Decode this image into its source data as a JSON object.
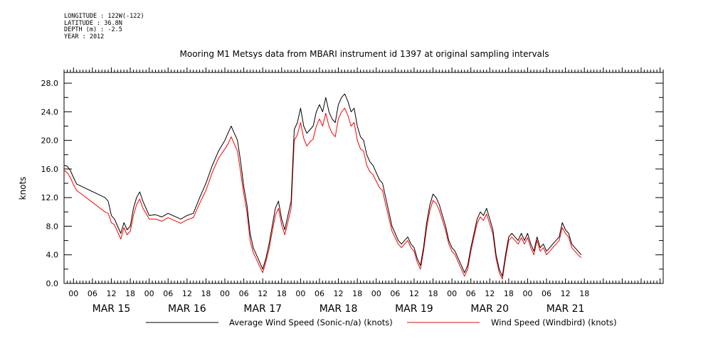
{
  "header": {
    "longitude": "LONGITUDE : 122W(-122)",
    "latitude": "LATITUDE : 36.8N",
    "depth": "DEPTH (m) : -2.5",
    "year": "YEAR : 2012"
  },
  "chart_data": {
    "type": "line",
    "title": "Mooring M1 Metsys data from MBARI instrument id 1397 at original sampling intervals",
    "ylabel": "knots",
    "xlabel": "",
    "ylim": [
      0,
      29.5
    ],
    "xlim": [
      -3,
      187
    ],
    "x_unit": "hours since 2012-03-15 00:00",
    "yticks": [
      "0.0",
      "4.0",
      "8.0",
      "12.0",
      "16.0",
      "20.0",
      "24.0",
      "28.0"
    ],
    "hour_tick_labels": [
      "00",
      "06",
      "12",
      "18",
      "00",
      "06",
      "12",
      "18",
      "00",
      "06",
      "12",
      "18",
      "00",
      "06",
      "12",
      "18",
      "00",
      "06",
      "12",
      "18",
      "00",
      "06",
      "12",
      "18",
      "00",
      "06",
      "12",
      "18"
    ],
    "day_labels": [
      "MAR 15",
      "MAR 16",
      "MAR 17",
      "MAR 18",
      "MAR 19",
      "MAR 20",
      "MAR 21"
    ],
    "grid": false,
    "legend_position": "bottom",
    "series": [
      {
        "name": "Average Wind Speed (Sonic-n/a) (knots)",
        "color": "#000000",
        "points": [
          [
            -3,
            16.5
          ],
          [
            -2,
            16.4
          ],
          [
            -1,
            15.8
          ],
          [
            0,
            14.8
          ],
          [
            1,
            13.9
          ],
          [
            10,
            12.0
          ],
          [
            11,
            11.5
          ],
          [
            12,
            9.5
          ],
          [
            13,
            9.0
          ],
          [
            14,
            8.0
          ],
          [
            15,
            7.0
          ],
          [
            16,
            8.5
          ],
          [
            17,
            7.5
          ],
          [
            18,
            8.0
          ],
          [
            19,
            10.5
          ],
          [
            20,
            12.0
          ],
          [
            21,
            12.8
          ],
          [
            22,
            11.5
          ],
          [
            23,
            10.5
          ],
          [
            24,
            9.5
          ],
          [
            26,
            9.6
          ],
          [
            28,
            9.3
          ],
          [
            30,
            9.8
          ],
          [
            32,
            9.4
          ],
          [
            34,
            9.0
          ],
          [
            36,
            9.5
          ],
          [
            38,
            9.8
          ],
          [
            40,
            12.0
          ],
          [
            42,
            14.0
          ],
          [
            44,
            16.5
          ],
          [
            46,
            18.5
          ],
          [
            48,
            20.0
          ],
          [
            49,
            21.0
          ],
          [
            50,
            22.0
          ],
          [
            51,
            21.0
          ],
          [
            52,
            20.0
          ],
          [
            53,
            17.0
          ],
          [
            54,
            13.5
          ],
          [
            55,
            11.0
          ],
          [
            56,
            7.0
          ],
          [
            57,
            5.0
          ],
          [
            58,
            4.0
          ],
          [
            59,
            3.0
          ],
          [
            60,
            2.0
          ],
          [
            61,
            3.5
          ],
          [
            62,
            5.5
          ],
          [
            63,
            8.0
          ],
          [
            64,
            10.5
          ],
          [
            65,
            11.5
          ],
          [
            66,
            9.0
          ],
          [
            67,
            7.5
          ],
          [
            68,
            9.5
          ],
          [
            69,
            11.5
          ],
          [
            70,
            21.5
          ],
          [
            71,
            22.5
          ],
          [
            72,
            24.5
          ],
          [
            73,
            22.0
          ],
          [
            74,
            21.0
          ],
          [
            75,
            21.5
          ],
          [
            76,
            22.0
          ],
          [
            77,
            24.0
          ],
          [
            78,
            25.0
          ],
          [
            79,
            24.0
          ],
          [
            80,
            26.0
          ],
          [
            81,
            24.0
          ],
          [
            82,
            23.0
          ],
          [
            83,
            22.5
          ],
          [
            84,
            25.0
          ],
          [
            85,
            26.0
          ],
          [
            86,
            26.5
          ],
          [
            87,
            25.5
          ],
          [
            88,
            24.0
          ],
          [
            89,
            24.5
          ],
          [
            90,
            22.0
          ],
          [
            91,
            20.5
          ],
          [
            92,
            20.0
          ],
          [
            93,
            18.0
          ],
          [
            94,
            17.0
          ],
          [
            95,
            16.5
          ],
          [
            96,
            15.5
          ],
          [
            97,
            14.5
          ],
          [
            98,
            14.0
          ],
          [
            99,
            12.0
          ],
          [
            100,
            10.0
          ],
          [
            101,
            8.0
          ],
          [
            102,
            7.0
          ],
          [
            103,
            6.0
          ],
          [
            104,
            5.5
          ],
          [
            105,
            6.0
          ],
          [
            106,
            6.5
          ],
          [
            107,
            5.5
          ],
          [
            108,
            5.0
          ],
          [
            109,
            3.5
          ],
          [
            110,
            2.5
          ],
          [
            111,
            5.0
          ],
          [
            112,
            8.5
          ],
          [
            113,
            11.0
          ],
          [
            114,
            12.5
          ],
          [
            115,
            12.0
          ],
          [
            116,
            11.0
          ],
          [
            117,
            9.5
          ],
          [
            118,
            8.0
          ],
          [
            119,
            6.0
          ],
          [
            120,
            5.0
          ],
          [
            121,
            4.5
          ],
          [
            122,
            3.5
          ],
          [
            123,
            2.5
          ],
          [
            124,
            1.5
          ],
          [
            125,
            2.5
          ],
          [
            126,
            5.0
          ],
          [
            127,
            7.0
          ],
          [
            128,
            9.0
          ],
          [
            129,
            10.0
          ],
          [
            130,
            9.5
          ],
          [
            131,
            10.5
          ],
          [
            132,
            9.0
          ],
          [
            133,
            7.5
          ],
          [
            134,
            4.0
          ],
          [
            135,
            2.0
          ],
          [
            136,
            1.0
          ],
          [
            137,
            4.0
          ],
          [
            138,
            6.5
          ],
          [
            139,
            7.0
          ],
          [
            140,
            6.5
          ],
          [
            141,
            6.0
          ],
          [
            142,
            7.0
          ],
          [
            143,
            6.0
          ],
          [
            144,
            7.0
          ],
          [
            145,
            5.5
          ],
          [
            146,
            4.5
          ],
          [
            147,
            6.5
          ],
          [
            148,
            5.0
          ],
          [
            149,
            5.5
          ],
          [
            150,
            4.5
          ],
          [
            151,
            5.0
          ],
          [
            152,
            5.5
          ],
          [
            153,
            6.0
          ],
          [
            154,
            6.5
          ],
          [
            155,
            8.5
          ],
          [
            156,
            7.5
          ],
          [
            157,
            7.0
          ],
          [
            158,
            5.5
          ],
          [
            159,
            5.0
          ],
          [
            160,
            4.5
          ],
          [
            161,
            4.0
          ]
        ]
      },
      {
        "name": "Wind Speed (Windbird) (knots)",
        "color": "#ff0000",
        "points": [
          [
            -3,
            15.8
          ],
          [
            -2,
            15.5
          ],
          [
            -1,
            14.8
          ],
          [
            0,
            13.8
          ],
          [
            1,
            13.0
          ],
          [
            10,
            10.0
          ],
          [
            11,
            9.8
          ],
          [
            12,
            8.5
          ],
          [
            13,
            8.2
          ],
          [
            14,
            7.2
          ],
          [
            15,
            6.2
          ],
          [
            16,
            7.8
          ],
          [
            17,
            6.8
          ],
          [
            18,
            7.3
          ],
          [
            19,
            9.5
          ],
          [
            20,
            11.0
          ],
          [
            21,
            11.8
          ],
          [
            22,
            10.5
          ],
          [
            23,
            9.8
          ],
          [
            24,
            9.0
          ],
          [
            26,
            9.0
          ],
          [
            28,
            8.7
          ],
          [
            30,
            9.2
          ],
          [
            32,
            8.8
          ],
          [
            34,
            8.4
          ],
          [
            36,
            8.9
          ],
          [
            38,
            9.2
          ],
          [
            40,
            11.2
          ],
          [
            42,
            13.0
          ],
          [
            44,
            15.5
          ],
          [
            46,
            17.5
          ],
          [
            48,
            18.8
          ],
          [
            49,
            19.5
          ],
          [
            50,
            20.5
          ],
          [
            51,
            19.5
          ],
          [
            52,
            18.5
          ],
          [
            53,
            15.5
          ],
          [
            54,
            12.5
          ],
          [
            55,
            10.0
          ],
          [
            56,
            6.0
          ],
          [
            57,
            4.3
          ],
          [
            58,
            3.4
          ],
          [
            59,
            2.4
          ],
          [
            60,
            1.5
          ],
          [
            61,
            3.0
          ],
          [
            62,
            4.8
          ],
          [
            63,
            7.2
          ],
          [
            64,
            9.5
          ],
          [
            65,
            10.5
          ],
          [
            66,
            8.2
          ],
          [
            67,
            6.8
          ],
          [
            68,
            8.6
          ],
          [
            69,
            10.5
          ],
          [
            70,
            20.0
          ],
          [
            71,
            20.8
          ],
          [
            72,
            22.5
          ],
          [
            73,
            20.3
          ],
          [
            74,
            19.2
          ],
          [
            75,
            19.8
          ],
          [
            76,
            20.2
          ],
          [
            77,
            22.0
          ],
          [
            78,
            23.0
          ],
          [
            79,
            22.0
          ],
          [
            80,
            23.8
          ],
          [
            81,
            22.0
          ],
          [
            82,
            21.0
          ],
          [
            83,
            20.5
          ],
          [
            84,
            23.0
          ],
          [
            85,
            24.0
          ],
          [
            86,
            24.5
          ],
          [
            87,
            23.5
          ],
          [
            88,
            22.0
          ],
          [
            89,
            22.5
          ],
          [
            90,
            20.0
          ],
          [
            91,
            18.8
          ],
          [
            92,
            18.5
          ],
          [
            93,
            16.5
          ],
          [
            94,
            15.6
          ],
          [
            95,
            15.2
          ],
          [
            96,
            14.3
          ],
          [
            97,
            13.4
          ],
          [
            98,
            13.0
          ],
          [
            99,
            11.0
          ],
          [
            100,
            9.2
          ],
          [
            101,
            7.3
          ],
          [
            102,
            6.4
          ],
          [
            103,
            5.5
          ],
          [
            104,
            5.0
          ],
          [
            105,
            5.5
          ],
          [
            106,
            6.0
          ],
          [
            107,
            5.0
          ],
          [
            108,
            4.5
          ],
          [
            109,
            3.0
          ],
          [
            110,
            2.0
          ],
          [
            111,
            4.5
          ],
          [
            112,
            7.8
          ],
          [
            113,
            10.2
          ],
          [
            114,
            11.6
          ],
          [
            115,
            11.2
          ],
          [
            116,
            10.2
          ],
          [
            117,
            8.8
          ],
          [
            118,
            7.4
          ],
          [
            119,
            5.5
          ],
          [
            120,
            4.5
          ],
          [
            121,
            4.0
          ],
          [
            122,
            3.0
          ],
          [
            123,
            2.0
          ],
          [
            124,
            1.0
          ],
          [
            125,
            2.0
          ],
          [
            126,
            4.5
          ],
          [
            127,
            6.5
          ],
          [
            128,
            8.4
          ],
          [
            129,
            9.3
          ],
          [
            130,
            8.8
          ],
          [
            131,
            9.7
          ],
          [
            132,
            8.3
          ],
          [
            133,
            6.9
          ],
          [
            134,
            3.5
          ],
          [
            135,
            1.5
          ],
          [
            136,
            0.6
          ],
          [
            137,
            3.5
          ],
          [
            138,
            6.0
          ],
          [
            139,
            6.5
          ],
          [
            140,
            6.0
          ],
          [
            141,
            5.5
          ],
          [
            142,
            6.4
          ],
          [
            143,
            5.5
          ],
          [
            144,
            6.4
          ],
          [
            145,
            5.0
          ],
          [
            146,
            4.0
          ],
          [
            147,
            6.0
          ],
          [
            148,
            4.5
          ],
          [
            149,
            5.0
          ],
          [
            150,
            4.0
          ],
          [
            151,
            4.5
          ],
          [
            152,
            5.0
          ],
          [
            153,
            5.5
          ],
          [
            154,
            6.0
          ],
          [
            155,
            7.8
          ],
          [
            156,
            7.0
          ],
          [
            157,
            6.5
          ],
          [
            158,
            5.0
          ],
          [
            159,
            4.5
          ],
          [
            160,
            4.0
          ],
          [
            161,
            3.6
          ]
        ]
      }
    ]
  }
}
